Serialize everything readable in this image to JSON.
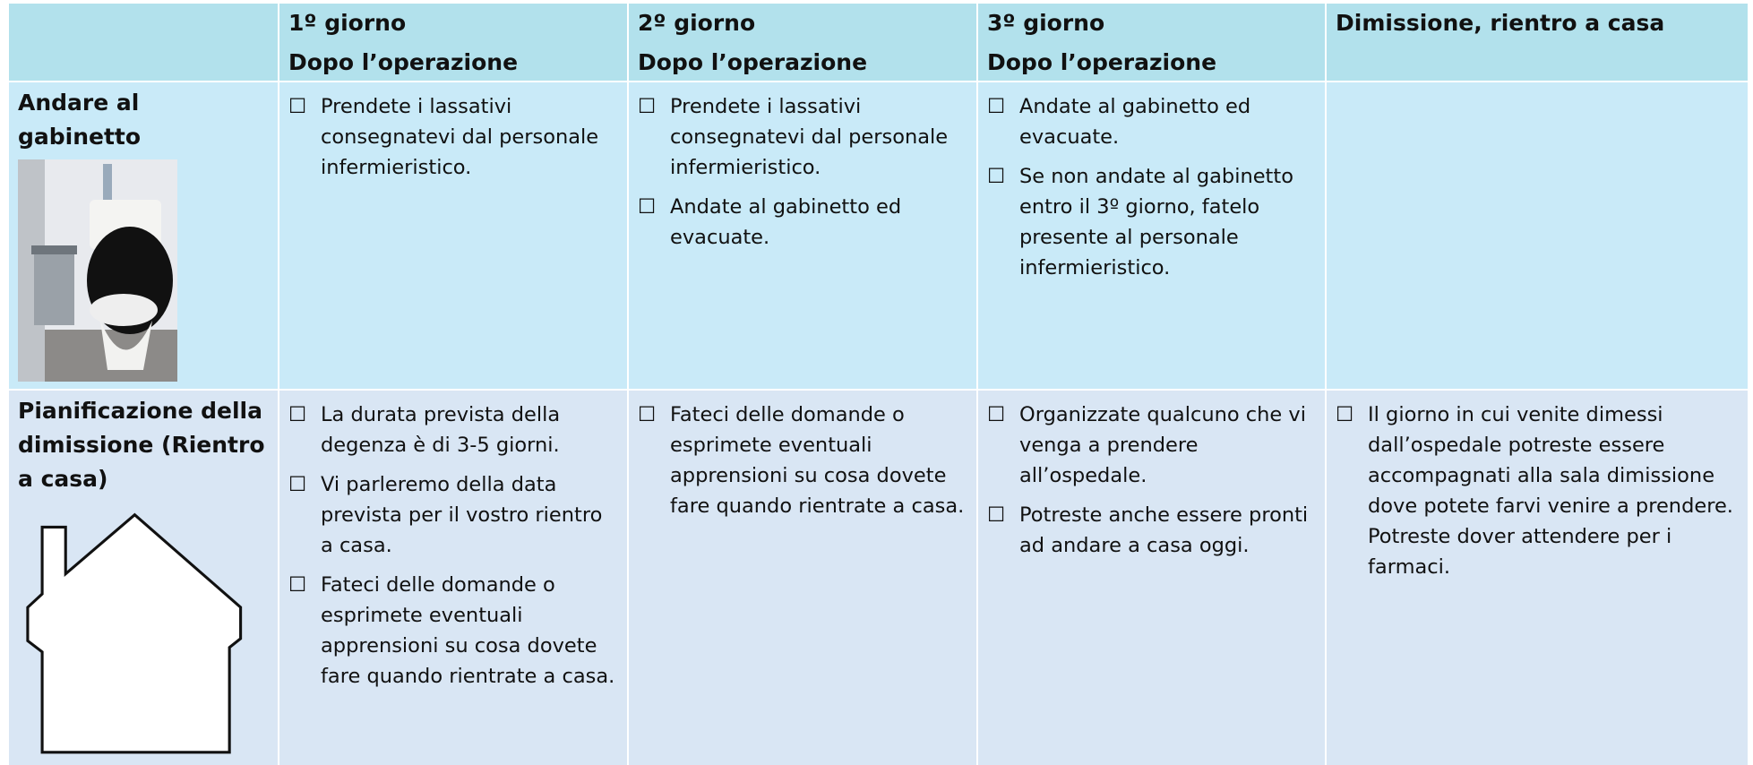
{
  "header": [
    {
      "title": "1º giorno",
      "subtitle": "Dopo l’operazione"
    },
    {
      "title": "2º giorno",
      "subtitle": "Dopo l’operazione"
    },
    {
      "title": "3º giorno",
      "subtitle": "Dopo l’operazione"
    },
    {
      "title": "Dimissione, rientro a casa"
    }
  ],
  "rows": [
    {
      "label": "Andare al gabinetto",
      "cells": [
        [
          "Prendete i lassativi consegnatevi dal personale infermieristico."
        ],
        [
          "Prendete i lassativi consegnatevi dal personale infermieristico.",
          "Andate al gabinetto ed evacuate."
        ],
        [
          "Andate al gabinetto ed evacuate.",
          "Se non andate al gabinetto entro il 3º giorno, fatelo presente al personale infermieristico."
        ],
        []
      ]
    },
    {
      "label": "Pianificazione della dimissione (Rientro a casa)",
      "cells": [
        [
          "La durata prevista della degenza è di 3-5 giorni.",
          "Vi parleremo della data prevista per il vostro rientro a casa.",
          "Fateci delle domande o esprimete eventuali apprensioni su cosa dovete fare quando rientrate a casa."
        ],
        [
          "Fateci delle domande o esprimete eventuali apprensioni su cosa dovete fare quando rientrate a casa."
        ],
        [
          "Organizzate qualcuno che vi venga a prendere all’ospedale.",
          "Potreste anche essere pronti ad andare a casa oggi."
        ],
        [
          "Il giorno in cui venite dimessi dall’ospedale potreste essere accompagnati alla sala dimissione dove potete farvi venire a prendere.  Potreste dover attendere per i farmaci."
        ]
      ]
    }
  ]
}
